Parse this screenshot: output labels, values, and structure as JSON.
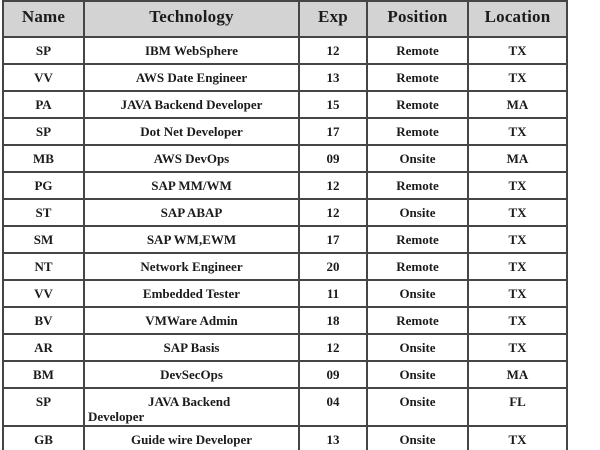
{
  "colors": {
    "header_bg": "#d3d3d3",
    "border": "#454545",
    "text": "#1b1b1b"
  },
  "table": {
    "columns": [
      {
        "key": "name",
        "label": "Name"
      },
      {
        "key": "technology",
        "label": "Technology"
      },
      {
        "key": "exp",
        "label": "Exp"
      },
      {
        "key": "position",
        "label": "Position"
      },
      {
        "key": "location",
        "label": "Location"
      }
    ],
    "rows": [
      {
        "name": "SP",
        "technology": "IBM WebSphere",
        "exp": "12",
        "position": "Remote",
        "location": "TX"
      },
      {
        "name": "VV",
        "technology": "AWS Date Engineer",
        "exp": "13",
        "position": "Remote",
        "location": "TX"
      },
      {
        "name": "PA",
        "technology": "JAVA Backend Developer",
        "exp": "15",
        "position": "Remote",
        "location": "MA"
      },
      {
        "name": "SP",
        "technology": "Dot Net Developer",
        "exp": "17",
        "position": "Remote",
        "location": "TX"
      },
      {
        "name": "MB",
        "technology": "AWS DevOps",
        "exp": "09",
        "position": "Onsite",
        "location": "MA"
      },
      {
        "name": "PG",
        "technology": "SAP MM/WM",
        "exp": "12",
        "position": "Remote",
        "location": "TX"
      },
      {
        "name": "ST",
        "technology": "SAP ABAP",
        "exp": "12",
        "position": "Onsite",
        "location": "TX"
      },
      {
        "name": "SM",
        "technology": "SAP WM,EWM",
        "exp": "17",
        "position": "Remote",
        "location": "TX"
      },
      {
        "name": "NT",
        "technology": "Network Engineer",
        "exp": "20",
        "position": "Remote",
        "location": "TX"
      },
      {
        "name": "VV",
        "technology": "Embedded Tester",
        "exp": "11",
        "position": "Onsite",
        "location": "TX"
      },
      {
        "name": "BV",
        "technology": "VMWare Admin",
        "exp": "18",
        "position": "Remote",
        "location": "TX"
      },
      {
        "name": "AR",
        "technology": "SAP Basis",
        "exp": "12",
        "position": "Onsite",
        "location": "TX"
      },
      {
        "name": "BM",
        "technology": "DevSecOps",
        "exp": "09",
        "position": "Onsite",
        "location": "MA"
      },
      {
        "name": "SP",
        "technology": "JAVA Backend\nDeveloper",
        "exp": "04",
        "position": "Onsite",
        "location": "FL",
        "wrap": true
      },
      {
        "name": "GB",
        "technology": "Guide wire Developer",
        "exp": "13",
        "position": "Onsite",
        "location": "TX"
      }
    ]
  }
}
